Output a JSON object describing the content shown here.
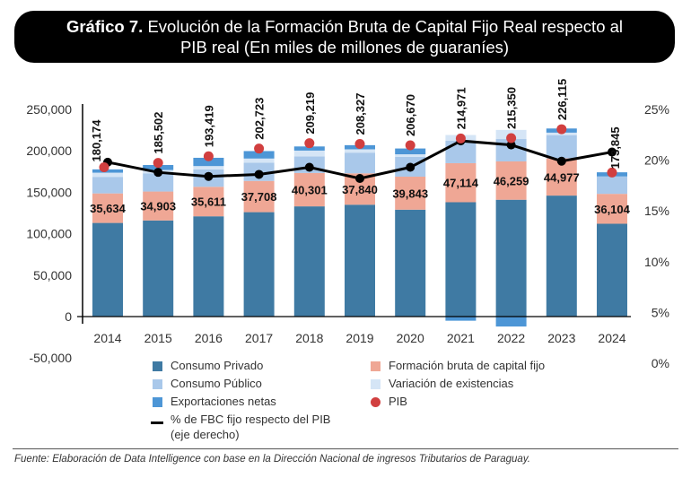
{
  "title": {
    "bold": "Gráfico 7.",
    "rest_line1": " Evolución de la Formación Bruta de Capital Fijo Real respecto al",
    "line2": "PIB real (En miles de millones de guaraníes)"
  },
  "source": "Fuente: Elaboración de Data Intelligence con base en la Dirección Nacional de ingresos Tributarios de Paraguay.",
  "colors": {
    "consumo_privado": "#3f7aa3",
    "fbkf": "#efa795",
    "consumo_publico": "#a9c8ea",
    "variacion": "#d5e5f6",
    "exportaciones": "#4d96d6",
    "pib": "#d13f3f",
    "line": "#000000"
  },
  "legend": [
    {
      "key": "consumo_privado",
      "label": "Consumo Privado",
      "shape": "square"
    },
    {
      "key": "fbkf",
      "label": "Formación bruta de capital fijo",
      "shape": "square"
    },
    {
      "key": "consumo_publico",
      "label": "Consumo Público",
      "shape": "square"
    },
    {
      "key": "variacion",
      "label": "Variación de existencias",
      "shape": "square"
    },
    {
      "key": "exportaciones",
      "label": "Exportaciones netas",
      "shape": "square"
    },
    {
      "key": "pib",
      "label": "PIB",
      "shape": "dot"
    },
    {
      "key": "line",
      "label": "% de FBC fijo respecto del PIB",
      "label2": "(eje derecho)",
      "shape": "line"
    }
  ],
  "chart_data": {
    "type": "bar",
    "title": "Gráfico 7. Evolución de la Formación Bruta de Capital Fijo Real respecto al PIB real (En miles de millones de guaraníes)",
    "categories": [
      "2014",
      "2015",
      "2016",
      "2017",
      "2018",
      "2019",
      "2020",
      "2021",
      "2022",
      "2023",
      "2024"
    ],
    "stacked": true,
    "series": [
      {
        "key": "consumo_privado",
        "name": "Consumo Privado",
        "type": "bar",
        "values": [
          113000,
          116000,
          121000,
          126000,
          133000,
          135000,
          129000,
          138000,
          141000,
          146000,
          112000
        ]
      },
      {
        "key": "fbkf",
        "name": "Formación bruta de capital fijo",
        "type": "bar",
        "values": [
          35634,
          34903,
          35611,
          37708,
          40301,
          37840,
          39843,
          47114,
          46259,
          44977,
          36104
        ]
      },
      {
        "key": "consumo_publico",
        "name": "Consumo Público",
        "type": "bar",
        "values": [
          20000,
          22000,
          21000,
          22000,
          20000,
          25000,
          24000,
          27000,
          27000,
          28000,
          21000
        ]
      },
      {
        "key": "variacion",
        "name": "Variación de existencias",
        "type": "bar",
        "values": [
          5000,
          4000,
          4000,
          5000,
          7000,
          4000,
          3000,
          7000,
          11000,
          3000,
          0
        ]
      },
      {
        "key": "exportaciones",
        "name": "Exportaciones netas",
        "type": "bar",
        "values": [
          4000,
          6000,
          10000,
          9000,
          5000,
          5000,
          7000,
          -5000,
          -12000,
          5000,
          5000
        ]
      },
      {
        "key": "pib",
        "name": "PIB",
        "type": "dot",
        "values": [
          180174,
          185502,
          193419,
          202723,
          209219,
          208327,
          206670,
          214971,
          215350,
          226115,
          173845
        ]
      },
      {
        "key": "line",
        "name": "% de FBC fijo respecto del PIB (eje derecho)",
        "type": "line",
        "axis": "right",
        "values": [
          0.198,
          0.188,
          0.184,
          0.186,
          0.193,
          0.182,
          0.193,
          0.219,
          0.215,
          0.199,
          0.208
        ]
      }
    ],
    "fbkf_labels": [
      "35,634",
      "34,903",
      "35,611",
      "37,708",
      "40,301",
      "37,840",
      "39,843",
      "47,114",
      "46,259",
      "44,977",
      "36,104"
    ],
    "pib_labels": [
      "180,174",
      "185,502",
      "193,419",
      "202,723",
      "209,219",
      "208,327",
      "206,670",
      "214,971",
      "215,350",
      "226,115",
      "173,845"
    ],
    "y_left": {
      "ticks": [
        250000,
        200000,
        150000,
        100000,
        50000,
        0,
        -50000
      ],
      "tick_labels": [
        "250,000",
        "200,000",
        "150,000",
        "100,000",
        "50,000",
        "0",
        "-50,000"
      ],
      "ylim": [
        -50000,
        250000
      ]
    },
    "y_right": {
      "ticks": [
        0.25,
        0.2,
        0.15,
        0.1,
        0.05,
        0
      ],
      "tick_labels": [
        "25%",
        "20%",
        "15%",
        "10%",
        "5%",
        "0%"
      ],
      "ylim": [
        0,
        0.25
      ]
    },
    "xlabel": "",
    "ylabel": "",
    "grid": false,
    "legend_position": "bottom"
  }
}
